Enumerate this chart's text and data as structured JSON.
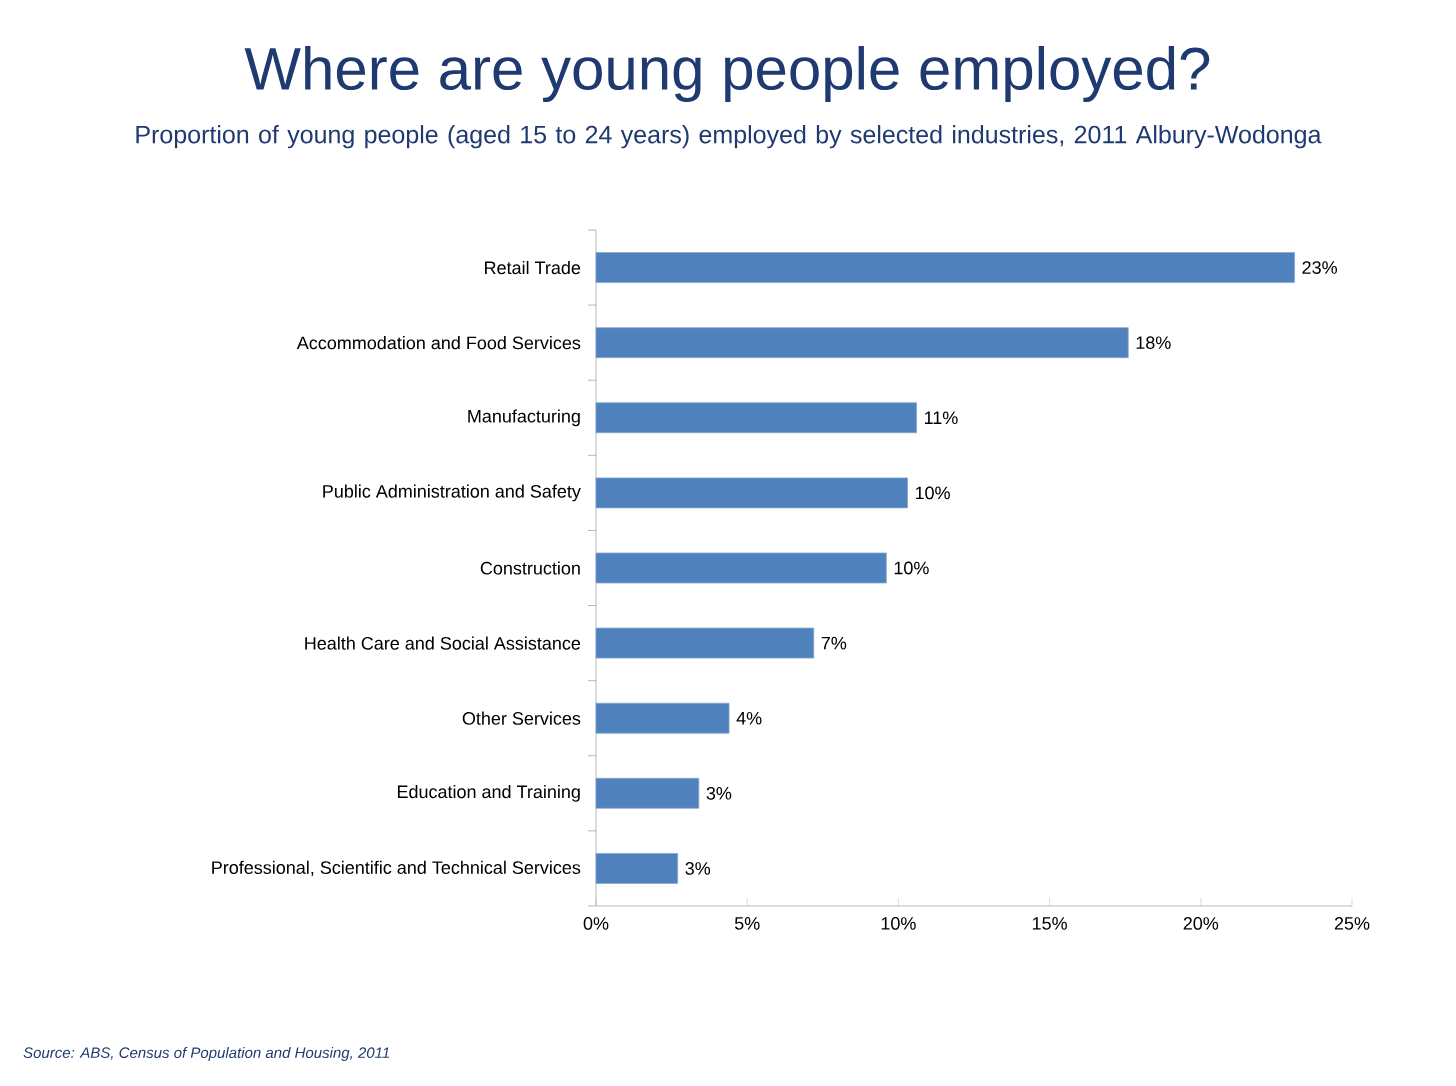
{
  "chart_data": {
    "type": "bar",
    "orientation": "horizontal",
    "title": "Where are young people employed?",
    "subtitle": "Proportion of young people (aged 15 to 24 years) employed by selected industries, 2011 Albury-Wodonga",
    "categories": [
      "Retail Trade",
      "Accommodation and Food Services",
      "Manufacturing",
      "Public Administration and Safety",
      "Construction",
      "Health Care and Social Assistance",
      "Other Services",
      "Education and Training",
      "Professional, Scientific and Technical Services"
    ],
    "values": [
      23.1,
      17.6,
      10.6,
      10.3,
      9.6,
      7.2,
      4.4,
      3.4,
      2.7
    ],
    "value_labels": [
      "23%",
      "18%",
      "11%",
      "10%",
      "10%",
      "7%",
      "4%",
      "3%",
      "3%"
    ],
    "color": "#4f81bd",
    "xlim": [
      0,
      25
    ],
    "xticks": [
      {
        "value": 0,
        "label": "0%"
      },
      {
        "value": 5,
        "label": "5%"
      },
      {
        "value": 10,
        "label": "10%"
      },
      {
        "value": 15,
        "label": "15%"
      },
      {
        "value": 20,
        "label": "20%"
      },
      {
        "value": 25,
        "label": "25%"
      }
    ],
    "annotations": [
      "Source: ABS, Census of Population and Housing, 2011"
    ]
  }
}
